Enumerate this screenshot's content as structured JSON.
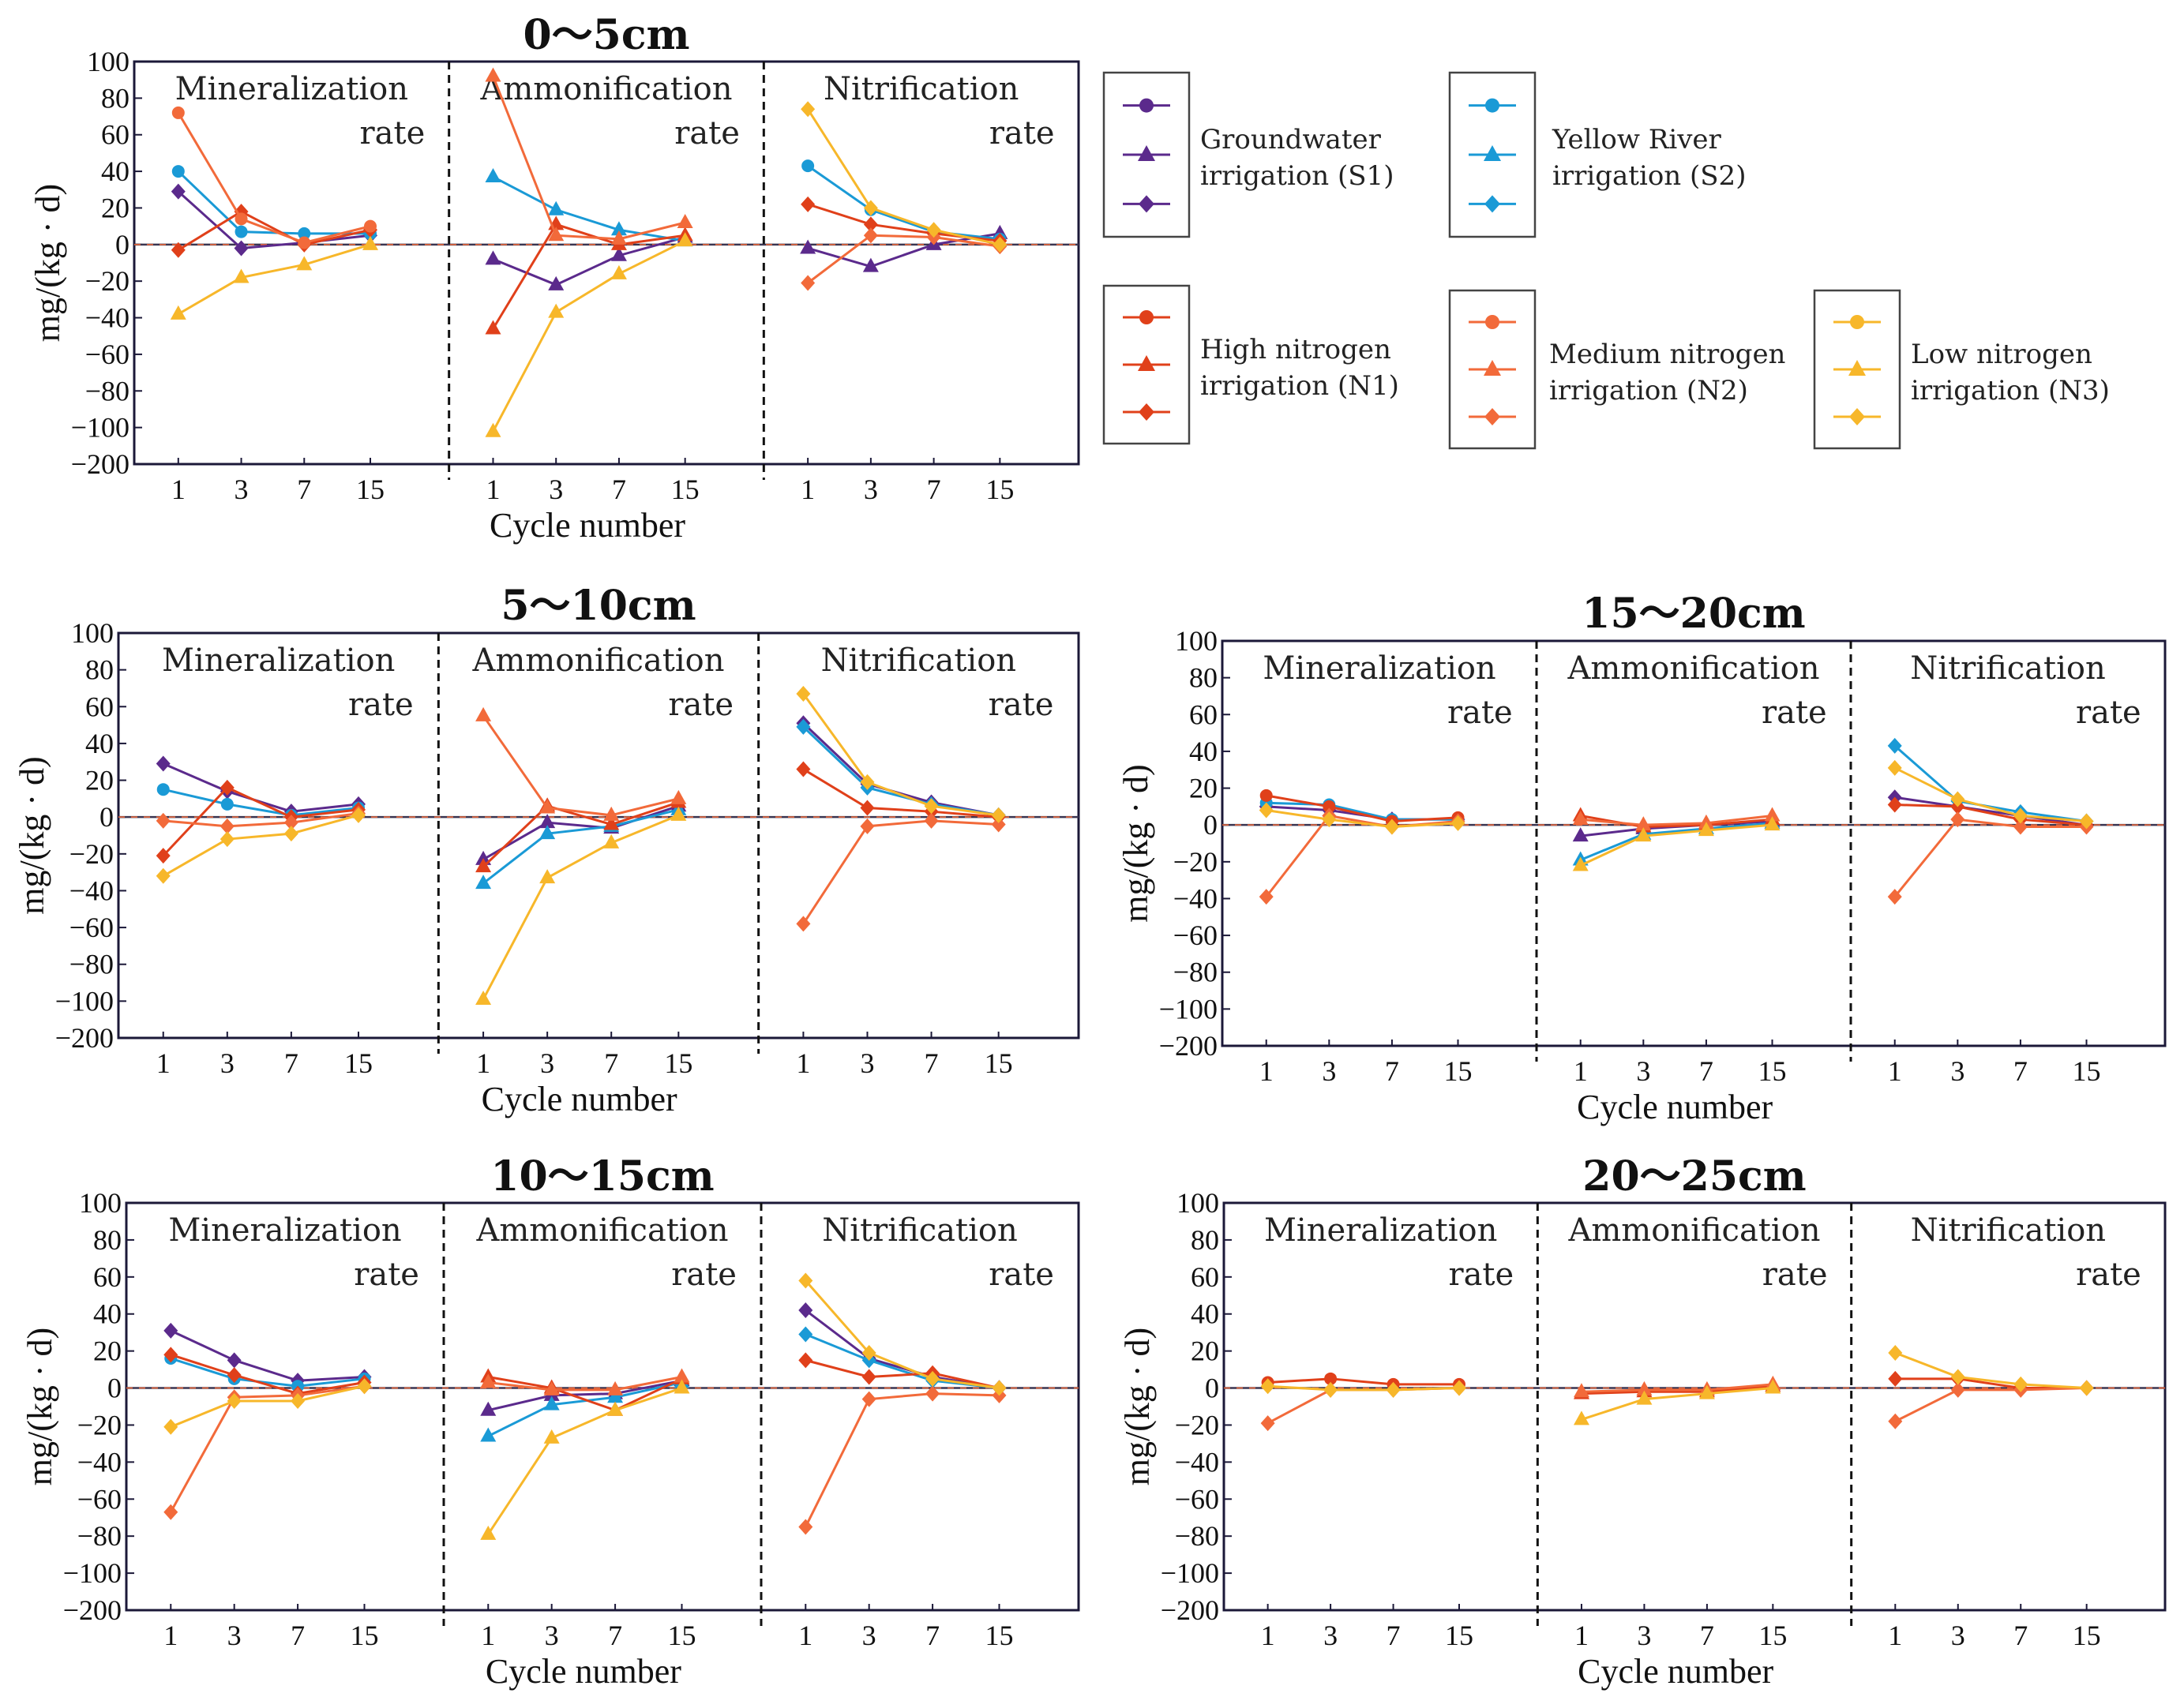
{
  "figure": {
    "ylabel": "mg/(kg · d)",
    "xlabel": "Cycle number",
    "yticks": [
      "100",
      "80",
      "60",
      "40",
      "20",
      "0",
      "−20",
      "−40",
      "−60",
      "−80",
      "−100",
      "−200"
    ],
    "xticks": [
      "1",
      "3",
      "7",
      "15"
    ],
    "sections": [
      {
        "line1": "Mineralization",
        "line2": "rate"
      },
      {
        "line1": "Ammonification",
        "line2": "rate"
      },
      {
        "line1": "Nitrification",
        "line2": "rate"
      }
    ]
  },
  "legend": [
    {
      "line1": "Groundwater",
      "line2": "irrigation (S1)",
      "color": "#5b2a8c"
    },
    {
      "line1": "Yellow River",
      "line2": "irrigation (S2)",
      "color": "#1a9ad6"
    },
    {
      "line1": "High nitrogen",
      "line2": "irrigation (N1)",
      "color": "#e0401a"
    },
    {
      "line1": "Medium nitrogen",
      "line2": "irrigation (N2)",
      "color": "#f26a3a"
    },
    {
      "line1": "Low  nitrogen",
      "line2": "irrigation (N3)",
      "color": "#f7b72a"
    }
  ],
  "chart_data": [
    {
      "type": "line",
      "title": "0～5cm",
      "xlabel": "Cycle number",
      "ylabel": "mg/(kg · d)",
      "categories": [
        "1",
        "3",
        "7",
        "15"
      ],
      "ylim": [
        -200,
        100
      ],
      "sections": {
        "Mineralization rate": [
          {
            "name": "S1",
            "marker": "diamond",
            "color": "#5b2a8c",
            "values": [
              29,
              -2,
              1,
              5
            ]
          },
          {
            "name": "S2",
            "marker": "circle",
            "color": "#1a9ad6",
            "values": [
              40,
              7,
              6,
              6
            ]
          },
          {
            "name": "N1",
            "marker": "diamond",
            "color": "#e0401a",
            "values": [
              -3,
              18,
              0,
              8
            ]
          },
          {
            "name": "N2",
            "marker": "circle",
            "color": "#f26a3a",
            "values": [
              72,
              14,
              1,
              10
            ]
          },
          {
            "name": "N3",
            "marker": "triangle",
            "color": "#f7b72a",
            "values": [
              -38,
              -18,
              -11,
              0
            ]
          }
        ],
        "Ammonification rate": [
          {
            "name": "S1",
            "marker": "triangle",
            "color": "#5b2a8c",
            "values": [
              -8,
              -22,
              -6,
              4
            ]
          },
          {
            "name": "S2",
            "marker": "triangle",
            "color": "#1a9ad6",
            "values": [
              37,
              19,
              8,
              2
            ]
          },
          {
            "name": "N1",
            "marker": "triangle",
            "color": "#e0401a",
            "values": [
              -46,
              11,
              0,
              5
            ]
          },
          {
            "name": "N2",
            "marker": "triangle",
            "color": "#f26a3a",
            "values": [
              92,
              5,
              3,
              12
            ]
          },
          {
            "name": "N3",
            "marker": "triangle",
            "color": "#f7b72a",
            "values": [
              -111,
              -37,
              -16,
              2
            ]
          }
        ],
        "Nitrification rate": [
          {
            "name": "S1",
            "marker": "triangle",
            "color": "#5b2a8c",
            "values": [
              -2,
              -12,
              0,
              6
            ]
          },
          {
            "name": "S2",
            "marker": "circle",
            "color": "#1a9ad6",
            "values": [
              43,
              19,
              7,
              3
            ]
          },
          {
            "name": "N1",
            "marker": "diamond",
            "color": "#e0401a",
            "values": [
              22,
              11,
              6,
              2
            ]
          },
          {
            "name": "N2",
            "marker": "diamond",
            "color": "#f26a3a",
            "values": [
              -21,
              5,
              4,
              -1
            ]
          },
          {
            "name": "N3",
            "marker": "diamond",
            "color": "#f7b72a",
            "values": [
              74,
              20,
              8,
              0
            ]
          }
        ]
      }
    },
    {
      "type": "line",
      "title": "5～10cm",
      "xlabel": "Cycle number",
      "ylabel": "mg/(kg · d)",
      "categories": [
        "1",
        "3",
        "7",
        "15"
      ],
      "ylim": [
        -200,
        100
      ],
      "sections": {
        "Mineralization rate": [
          {
            "name": "S1",
            "marker": "diamond",
            "color": "#5b2a8c",
            "values": [
              29,
              14,
              3,
              7
            ]
          },
          {
            "name": "S2",
            "marker": "circle",
            "color": "#1a9ad6",
            "values": [
              15,
              7,
              1,
              5
            ]
          },
          {
            "name": "N1",
            "marker": "diamond",
            "color": "#e0401a",
            "values": [
              -21,
              16,
              0,
              4
            ]
          },
          {
            "name": "N2",
            "marker": "diamond",
            "color": "#f26a3a",
            "values": [
              -2,
              -5,
              -3,
              2
            ]
          },
          {
            "name": "N3",
            "marker": "diamond",
            "color": "#f7b72a",
            "values": [
              -32,
              -12,
              -9,
              1
            ]
          }
        ],
        "Ammonification rate": [
          {
            "name": "S1",
            "marker": "triangle",
            "color": "#5b2a8c",
            "values": [
              -23,
              -3,
              -6,
              6
            ]
          },
          {
            "name": "S2",
            "marker": "triangle",
            "color": "#1a9ad6",
            "values": [
              -36,
              -9,
              -5,
              4
            ]
          },
          {
            "name": "N1",
            "marker": "triangle",
            "color": "#e0401a",
            "values": [
              -27,
              6,
              -4,
              8
            ]
          },
          {
            "name": "N2",
            "marker": "triangle",
            "color": "#f26a3a",
            "values": [
              55,
              5,
              1,
              10
            ]
          },
          {
            "name": "N3",
            "marker": "triangle",
            "color": "#f7b72a",
            "values": [
              -99,
              -33,
              -14,
              1
            ]
          }
        ],
        "Nitrification rate": [
          {
            "name": "S1",
            "marker": "diamond",
            "color": "#5b2a8c",
            "values": [
              51,
              18,
              8,
              1
            ]
          },
          {
            "name": "S2",
            "marker": "diamond",
            "color": "#1a9ad6",
            "values": [
              49,
              16,
              7,
              1
            ]
          },
          {
            "name": "N1",
            "marker": "diamond",
            "color": "#e0401a",
            "values": [
              26,
              5,
              3,
              0
            ]
          },
          {
            "name": "N2",
            "marker": "diamond",
            "color": "#f26a3a",
            "values": [
              -58,
              -5,
              -2,
              -4
            ]
          },
          {
            "name": "N3",
            "marker": "diamond",
            "color": "#f7b72a",
            "values": [
              67,
              19,
              6,
              1
            ]
          }
        ]
      }
    },
    {
      "type": "line",
      "title": "10～15cm",
      "xlabel": "Cycle number",
      "ylabel": "mg/(kg · d)",
      "categories": [
        "1",
        "3",
        "7",
        "15"
      ],
      "ylim": [
        -200,
        100
      ],
      "sections": {
        "Mineralization rate": [
          {
            "name": "S1",
            "marker": "diamond",
            "color": "#5b2a8c",
            "values": [
              31,
              15,
              4,
              6
            ]
          },
          {
            "name": "S2",
            "marker": "circle",
            "color": "#1a9ad6",
            "values": [
              16,
              5,
              1,
              5
            ]
          },
          {
            "name": "N1",
            "marker": "diamond",
            "color": "#e0401a",
            "values": [
              18,
              7,
              -3,
              3
            ]
          },
          {
            "name": "N2",
            "marker": "diamond",
            "color": "#f26a3a",
            "values": [
              -67,
              -5,
              -4,
              1
            ]
          },
          {
            "name": "N3",
            "marker": "diamond",
            "color": "#f7b72a",
            "values": [
              -21,
              -7,
              -7,
              1
            ]
          }
        ],
        "Ammonification rate": [
          {
            "name": "S1",
            "marker": "triangle",
            "color": "#5b2a8c",
            "values": [
              -12,
              -4,
              -3,
              4
            ]
          },
          {
            "name": "S2",
            "marker": "triangle",
            "color": "#1a9ad6",
            "values": [
              -26,
              -9,
              -5,
              3
            ]
          },
          {
            "name": "N1",
            "marker": "triangle",
            "color": "#e0401a",
            "values": [
              6,
              0,
              -12,
              5
            ]
          },
          {
            "name": "N2",
            "marker": "triangle",
            "color": "#f26a3a",
            "values": [
              3,
              -1,
              -1,
              6
            ]
          },
          {
            "name": "N3",
            "marker": "triangle",
            "color": "#f7b72a",
            "values": [
              -79,
              -27,
              -12,
              0
            ]
          }
        ],
        "Nitrification rate": [
          {
            "name": "S1",
            "marker": "diamond",
            "color": "#5b2a8c",
            "values": [
              42,
              16,
              6,
              0
            ]
          },
          {
            "name": "S2",
            "marker": "diamond",
            "color": "#1a9ad6",
            "values": [
              29,
              15,
              4,
              0
            ]
          },
          {
            "name": "N1",
            "marker": "diamond",
            "color": "#e0401a",
            "values": [
              15,
              6,
              8,
              0
            ]
          },
          {
            "name": "N2",
            "marker": "diamond",
            "color": "#f26a3a",
            "values": [
              -75,
              -6,
              -3,
              -4
            ]
          },
          {
            "name": "N3",
            "marker": "diamond",
            "color": "#f7b72a",
            "values": [
              58,
              19,
              5,
              0
            ]
          }
        ]
      }
    },
    {
      "type": "line",
      "title": "15～20cm",
      "xlabel": "Cycle number",
      "ylabel": "mg/(kg · d)",
      "categories": [
        "1",
        "3",
        "7",
        "15"
      ],
      "ylim": [
        -200,
        100
      ],
      "sections": {
        "Mineralization rate": [
          {
            "name": "S1",
            "marker": "diamond",
            "color": "#5b2a8c",
            "values": [
              10,
              8,
              3,
              3
            ]
          },
          {
            "name": "S2",
            "marker": "circle",
            "color": "#1a9ad6",
            "values": [
              12,
              11,
              3,
              3
            ]
          },
          {
            "name": "N1",
            "marker": "circle",
            "color": "#e0401a",
            "values": [
              16,
              10,
              2,
              4
            ]
          },
          {
            "name": "N2",
            "marker": "diamond",
            "color": "#f26a3a",
            "values": [
              -39,
              5,
              -1,
              2
            ]
          },
          {
            "name": "N3",
            "marker": "diamond",
            "color": "#f7b72a",
            "values": [
              8,
              3,
              -1,
              1
            ]
          }
        ],
        "Ammonification rate": [
          {
            "name": "S1",
            "marker": "triangle",
            "color": "#5b2a8c",
            "values": [
              -6,
              -2,
              0,
              2
            ]
          },
          {
            "name": "S2",
            "marker": "triangle",
            "color": "#1a9ad6",
            "values": [
              -19,
              -5,
              -2,
              1
            ]
          },
          {
            "name": "N1",
            "marker": "triangle",
            "color": "#e0401a",
            "values": [
              5,
              -1,
              0,
              3
            ]
          },
          {
            "name": "N2",
            "marker": "triangle",
            "color": "#f26a3a",
            "values": [
              3,
              0,
              1,
              5
            ]
          },
          {
            "name": "N3",
            "marker": "triangle",
            "color": "#f7b72a",
            "values": [
              -22,
              -6,
              -3,
              0
            ]
          }
        ],
        "Nitrification rate": [
          {
            "name": "S1",
            "marker": "diamond",
            "color": "#5b2a8c",
            "values": [
              15,
              10,
              5,
              0
            ]
          },
          {
            "name": "S2",
            "marker": "diamond",
            "color": "#1a9ad6",
            "values": [
              43,
              13,
              7,
              2
            ]
          },
          {
            "name": "N1",
            "marker": "diamond",
            "color": "#e0401a",
            "values": [
              11,
              10,
              3,
              0
            ]
          },
          {
            "name": "N2",
            "marker": "diamond",
            "color": "#f26a3a",
            "values": [
              -39,
              3,
              -1,
              -1
            ]
          },
          {
            "name": "N3",
            "marker": "diamond",
            "color": "#f7b72a",
            "values": [
              31,
              14,
              5,
              2
            ]
          }
        ]
      }
    },
    {
      "type": "line",
      "title": "20～25cm",
      "xlabel": "Cycle number",
      "ylabel": "mg/(kg · d)",
      "categories": [
        "1",
        "3",
        "7",
        "15"
      ],
      "ylim": [
        -200,
        100
      ],
      "sections": {
        "Mineralization rate": [
          {
            "name": "N1",
            "marker": "circle",
            "color": "#e0401a",
            "values": [
              3,
              5,
              2,
              2
            ]
          },
          {
            "name": "N2",
            "marker": "diamond",
            "color": "#f26a3a",
            "values": [
              -19,
              -1,
              -1,
              0
            ]
          },
          {
            "name": "N3",
            "marker": "diamond",
            "color": "#f7b72a",
            "values": [
              1,
              -1,
              -1,
              0
            ]
          }
        ],
        "Ammonification rate": [
          {
            "name": "N1",
            "marker": "triangle",
            "color": "#e0401a",
            "values": [
              -3,
              -2,
              -2,
              1
            ]
          },
          {
            "name": "N2",
            "marker": "triangle",
            "color": "#f26a3a",
            "values": [
              -2,
              -1,
              -1,
              2
            ]
          },
          {
            "name": "N3",
            "marker": "triangle",
            "color": "#f7b72a",
            "values": [
              -17,
              -6,
              -3,
              0
            ]
          }
        ],
        "Nitrification rate": [
          {
            "name": "N1",
            "marker": "diamond",
            "color": "#e0401a",
            "values": [
              5,
              5,
              0,
              0
            ]
          },
          {
            "name": "N2",
            "marker": "diamond",
            "color": "#f26a3a",
            "values": [
              -18,
              -1,
              -1,
              0
            ]
          },
          {
            "name": "N3",
            "marker": "diamond",
            "color": "#f7b72a",
            "values": [
              19,
              6,
              2,
              0
            ]
          }
        ]
      }
    }
  ]
}
